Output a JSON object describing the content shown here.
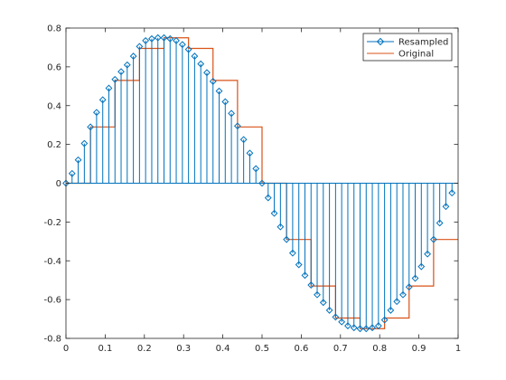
{
  "colors": {
    "resampled": "#0072BD",
    "original": "#D95319",
    "axis": "#262626",
    "background": "#ffffff"
  },
  "chart_data": {
    "type": "line",
    "title": "",
    "xlabel": "",
    "ylabel": "",
    "xlim": [
      0,
      1
    ],
    "ylim": [
      -0.8,
      0.8
    ],
    "grid": false,
    "box": true,
    "legend_position": "top-right",
    "x_ticks": [
      "0",
      "0.1",
      "0.2",
      "0.3",
      "0.4",
      "0.5",
      "0.6",
      "0.7",
      "0.8",
      "0.9",
      "1"
    ],
    "y_ticks": [
      "-0.8",
      "-0.6",
      "-0.4",
      "-0.2",
      "0",
      "0.2",
      "0.4",
      "0.6",
      "0.8"
    ],
    "series": [
      {
        "name": "Resampled",
        "style": "stem",
        "marker": "diamond",
        "x": [
          0.0,
          0.0156,
          0.0312,
          0.0469,
          0.0625,
          0.0781,
          0.0938,
          0.1094,
          0.125,
          0.1406,
          0.1562,
          0.1719,
          0.1875,
          0.2031,
          0.2188,
          0.2344,
          0.25,
          0.2656,
          0.2812,
          0.2969,
          0.3125,
          0.3281,
          0.3438,
          0.3594,
          0.375,
          0.3906,
          0.4062,
          0.4219,
          0.4375,
          0.4531,
          0.4688,
          0.4844,
          0.5,
          0.5156,
          0.5312,
          0.5469,
          0.5625,
          0.5781,
          0.5938,
          0.6094,
          0.625,
          0.6406,
          0.6562,
          0.6719,
          0.6875,
          0.7031,
          0.7188,
          0.7344,
          0.75,
          0.7656,
          0.7812,
          0.7969,
          0.8125,
          0.8281,
          0.8438,
          0.8594,
          0.875,
          0.8906,
          0.9062,
          0.9219,
          0.9375,
          0.9531,
          0.9688,
          0.9844
        ],
        "values": [
          0.0,
          0.05,
          0.12,
          0.205,
          0.29,
          0.365,
          0.43,
          0.49,
          0.535,
          0.575,
          0.61,
          0.655,
          0.705,
          0.735,
          0.745,
          0.75,
          0.75,
          0.745,
          0.735,
          0.715,
          0.69,
          0.655,
          0.615,
          0.57,
          0.525,
          0.475,
          0.42,
          0.36,
          0.295,
          0.225,
          0.155,
          0.075,
          0.0,
          -0.075,
          -0.155,
          -0.225,
          -0.29,
          -0.36,
          -0.42,
          -0.475,
          -0.525,
          -0.575,
          -0.615,
          -0.655,
          -0.69,
          -0.715,
          -0.735,
          -0.745,
          -0.75,
          -0.75,
          -0.745,
          -0.735,
          -0.705,
          -0.655,
          -0.61,
          -0.575,
          -0.535,
          -0.49,
          -0.43,
          -0.365,
          -0.29,
          -0.205,
          -0.12,
          -0.05
        ]
      },
      {
        "name": "Original",
        "style": "step",
        "x": [
          0.0,
          0.0625,
          0.125,
          0.1875,
          0.25,
          0.3125,
          0.375,
          0.4375,
          0.5,
          0.5625,
          0.625,
          0.6875,
          0.75,
          0.8125,
          0.875,
          0.9375,
          1.0
        ],
        "values": [
          0.0,
          0.29,
          0.53,
          0.695,
          0.75,
          0.695,
          0.53,
          0.29,
          0.0,
          -0.29,
          -0.53,
          -0.695,
          -0.75,
          -0.695,
          -0.53,
          -0.29,
          -0.29
        ]
      }
    ]
  }
}
